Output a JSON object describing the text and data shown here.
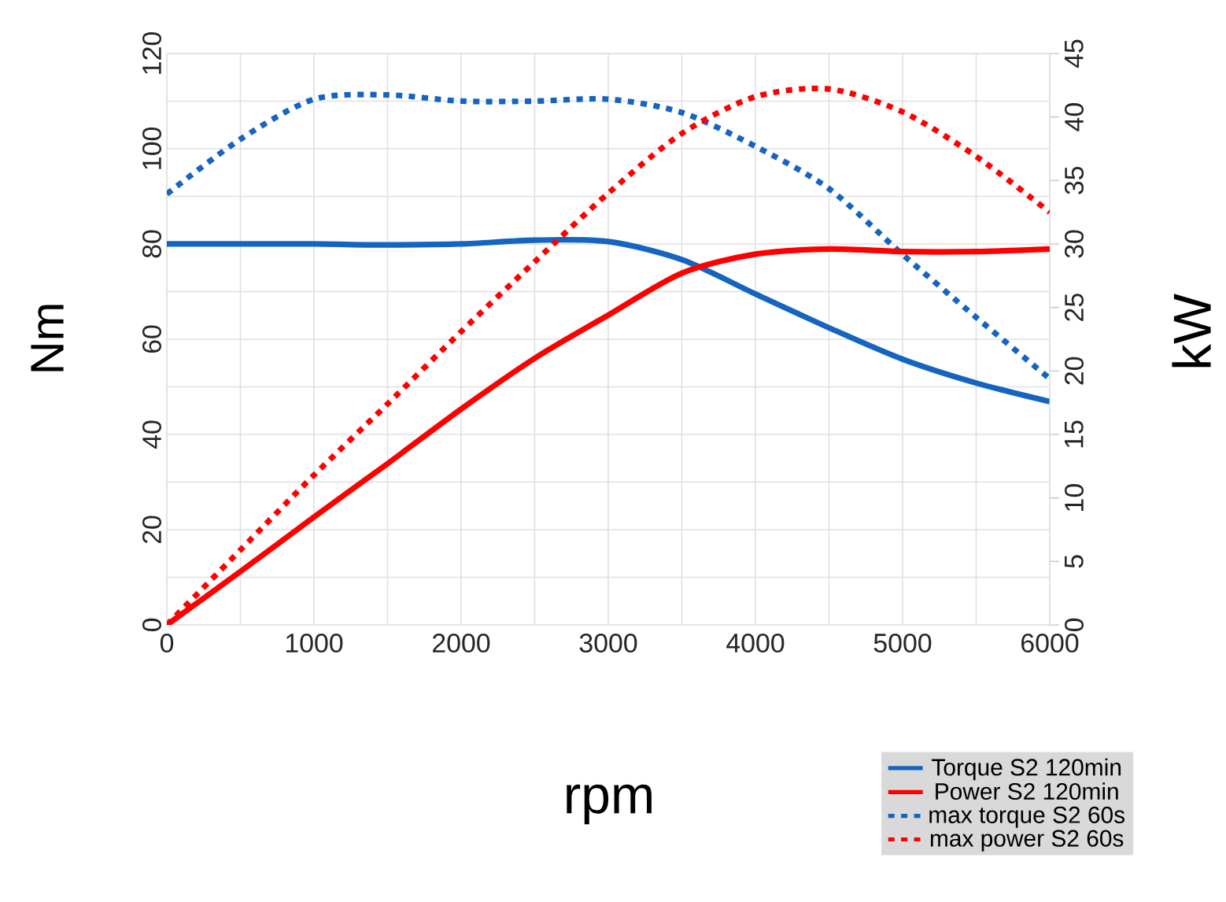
{
  "chart_data": {
    "type": "line",
    "xlabel": "rpm",
    "ylabel": "Nm",
    "y2label": "kW",
    "x": [
      0,
      500,
      1000,
      1500,
      2000,
      2500,
      3000,
      3500,
      4000,
      4500,
      5000,
      5500,
      6000
    ],
    "series": [
      {
        "name": "Torque S2 120min",
        "color": "#1565c0",
        "line_style": "solid",
        "values": [
          80,
          80,
          80,
          79.8,
          80,
          80.8,
          80.5,
          76.7,
          69.5,
          62.4,
          55.8,
          50.8,
          46.9
        ]
      },
      {
        "name": "Power S2 120min",
        "color": "#ff0000",
        "line_style": "solid",
        "axis": "y2",
        "values": [
          0,
          4.2,
          8.5,
          12.7,
          17,
          21,
          24.4,
          27.7,
          29.2,
          29.6,
          29.4,
          29.4,
          29.6
        ]
      },
      {
        "name": "max torque S2 60s",
        "color": "#1565c0",
        "line_style": "dotted",
        "values": [
          90.5,
          102,
          110.4,
          111.3,
          110,
          110,
          110.4,
          107.6,
          100.5,
          91.6,
          77.8,
          64.6,
          51.7
        ]
      },
      {
        "name": "max power S2 60s",
        "color": "#ff0000",
        "line_style": "dotted",
        "axis": "y2",
        "values": [
          0,
          5.9,
          11.8,
          17.4,
          23.1,
          28.6,
          34,
          38.7,
          41.6,
          42.2,
          40.4,
          36.9,
          32.5
        ]
      }
    ],
    "xlim": [
      0,
      6000
    ],
    "ylim": [
      0,
      120
    ],
    "y2lim": [
      0,
      45
    ],
    "xticks": [
      0,
      {
        "value": 500,
        "label": null
      },
      1000,
      {
        "value": 1500,
        "label": null
      },
      2000,
      {
        "value": 2500,
        "label": null
      },
      3000,
      {
        "value": 3500,
        "label": null
      },
      4000,
      {
        "value": 4500,
        "label": null
      },
      5000,
      {
        "value": 5500,
        "label": null
      },
      6000
    ],
    "yticks": [
      0,
      {
        "value": 10,
        "label": null
      },
      20,
      {
        "value": 30,
        "label": null
      },
      40,
      {
        "value": 50,
        "label": null
      },
      60,
      {
        "value": 70,
        "label": null
      },
      80,
      {
        "value": 90,
        "label": null
      },
      100,
      {
        "value": 110,
        "label": null
      },
      120
    ],
    "y2ticks": [
      0,
      5,
      10,
      15,
      20,
      25,
      30,
      35,
      40,
      45
    ],
    "grid": true,
    "legend": "bottom right",
    "marker": "none"
  }
}
